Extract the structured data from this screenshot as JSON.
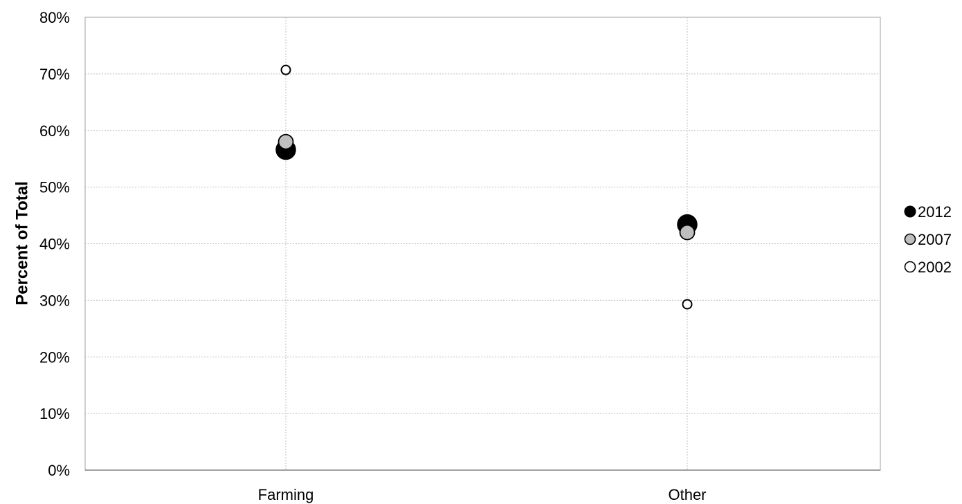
{
  "chart_data": {
    "type": "scatter",
    "title": "",
    "xlabel": "",
    "ylabel": "Percent of Total",
    "categories": [
      "Farming",
      "Other"
    ],
    "ylim": [
      0,
      80
    ],
    "yticks": [
      "0%",
      "10%",
      "20%",
      "30%",
      "40%",
      "50%",
      "60%",
      "70%",
      "80%"
    ],
    "grid": true,
    "legend_position": "right",
    "series": [
      {
        "name": "2012",
        "values": [
          56.6,
          43.4
        ],
        "color": "#000000",
        "marker": "large-filled-circle"
      },
      {
        "name": "2007",
        "values": [
          58.0,
          42.0
        ],
        "color": "#bfbfbf",
        "marker": "medium-filled-circle"
      },
      {
        "name": "2002",
        "values": [
          70.7,
          29.3
        ],
        "color": "#ffffff",
        "marker": "small-hollow-circle"
      }
    ]
  }
}
